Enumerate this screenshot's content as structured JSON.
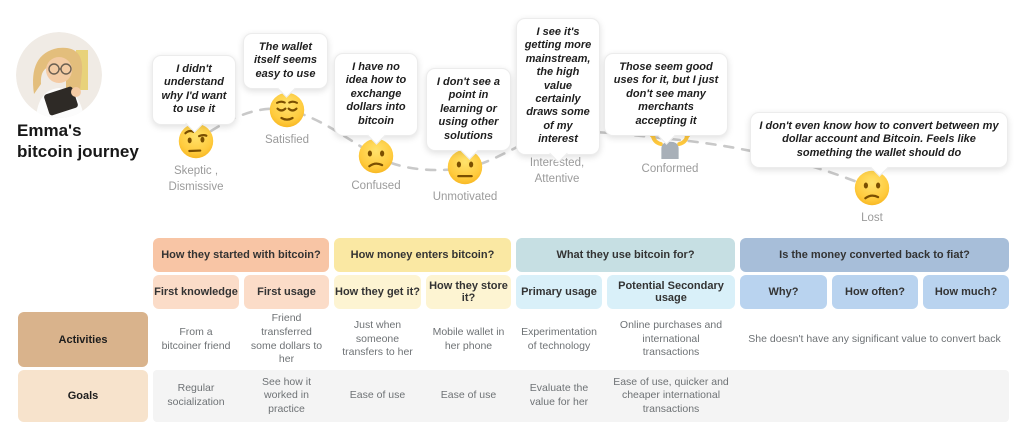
{
  "persona": {
    "title": "Emma's\nbitcoin journey",
    "avatar_alt": "woman-writing-in-notebook-photo"
  },
  "journey": {
    "path_color": "#C9C9C9",
    "stages": [
      {
        "quote": "I didn't understand why I'd want to use it",
        "emoji": "face-with-raised-eyebrow",
        "emoji_char": "🤨",
        "label": "Skeptic ,\nDismissive"
      },
      {
        "quote": "The wallet itself seems easy to use",
        "emoji": "relieved-face",
        "emoji_char": "😌",
        "label": "Satisfied"
      },
      {
        "quote": "I have no idea how to exchange dollars into bitcoin",
        "emoji": "confused-face",
        "emoji_char": "😕",
        "label": "Confused"
      },
      {
        "quote": "I don't see a point in learning or using other solutions",
        "emoji": "neutral-face",
        "emoji_char": "😐",
        "label": "Unmotivated"
      },
      {
        "quote": "I see it's getting more mainstream, the high value certainly draws some of my interest",
        "emoji": "face-with-monocle",
        "emoji_char": "🧐",
        "label": "Interested,\nAttentive"
      },
      {
        "quote": "Those seem good uses for it, but I just don't see many merchants accepting it",
        "emoji": "person-shrugging",
        "emoji_char": "🤷",
        "label": "Conformed"
      },
      {
        "quote": "I don't even know how to convert between my dollar account and Bitcoin. Feels like something the wallet should do",
        "emoji": "confused-face",
        "emoji_char": "😕",
        "label": "Lost"
      }
    ]
  },
  "table": {
    "goals_row_bg": "#F4F4F4",
    "phases": [
      {
        "title": "How they started with bitcoin?",
        "color": "#F8C5A5",
        "sub_color": "#FBDCC8",
        "columns": [
          "First knowledge",
          "First usage"
        ]
      },
      {
        "title": "How money enters bitcoin?",
        "color": "#FAE8A3",
        "sub_color": "#FDF4D2",
        "columns": [
          "How they get it?",
          "How they store it?"
        ]
      },
      {
        "title": "What they use bitcoin for?",
        "color": "#C6DFE3",
        "sub_color": "#D9F0F9",
        "columns": [
          "Primary usage",
          "Potential Secondary usage"
        ]
      },
      {
        "title": "Is the money converted back to fiat?",
        "color": "#A7BED9",
        "sub_color": "#B9D3EF",
        "columns": [
          "Why?",
          "How often?",
          "How much?"
        ]
      }
    ],
    "rows": [
      {
        "label": "Activities",
        "label_color": "#D9B38C",
        "cells": [
          "From a bitcoiner friend",
          "Friend transferred some dollars to her",
          "Just when someone transfers to her",
          "Mobile wallet in her phone",
          "Experimentation of technology",
          "Online purchases and international transactions",
          {
            "text": "She doesn't have any significant value to convert back",
            "span": 3
          }
        ]
      },
      {
        "label": "Goals",
        "label_color": "#F7E3CC",
        "cells": [
          "Regular socialization",
          "See how it worked in practice",
          "Ease of use",
          "Ease of use",
          "Evaluate the value for her",
          "Ease of use, quicker and cheaper international transactions",
          {
            "text": "",
            "span": 3
          }
        ]
      }
    ]
  }
}
